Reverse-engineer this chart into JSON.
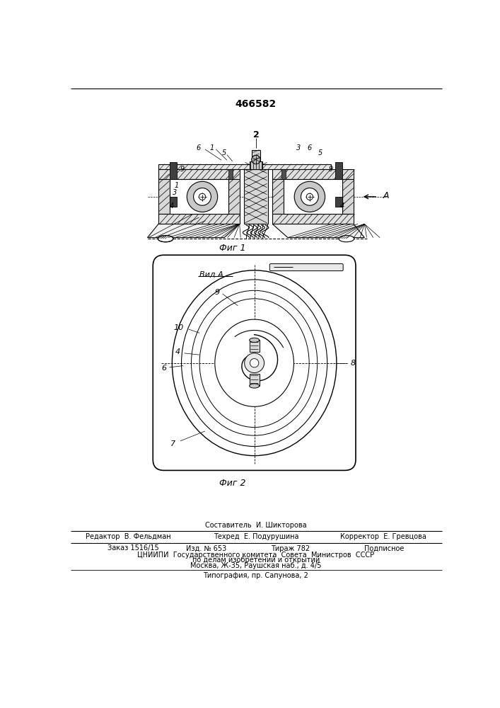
{
  "patent_number": "466582",
  "fig1_caption": "Фиг 1",
  "fig2_caption": "Фиг 2",
  "view_label": "Вид А",
  "footer": {
    "compiler": "Составитель  И. Шикторова",
    "editor": "Редактор  В. Фельдман",
    "techred": "Техред  Е. Подурушина",
    "corrector": "Корректор  Е. Гревцова",
    "order": "Заказ 1516/15",
    "edition": "Изд. № 653",
    "circulation": "Тираж 782",
    "subscription": "Подписное",
    "org_line1": "ЦНИИПИ  Государственного комитета  Совета  Министров  СССР",
    "org_line2": "по делам изобретений и открытий",
    "org_line3": "Москва, Ж-35, Раушская наб., д. 4/5",
    "print_line": "Типография, пр. Сапунова, 2"
  },
  "bg_color": "#ffffff",
  "line_color": "#000000"
}
